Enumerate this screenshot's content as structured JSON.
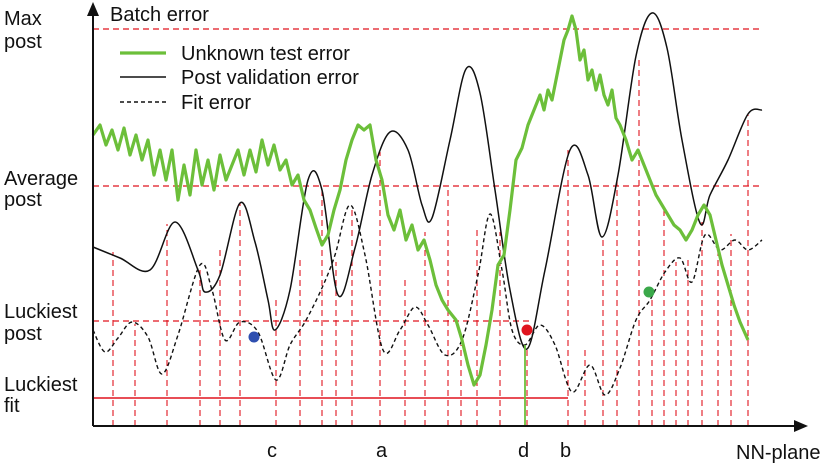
{
  "chart_data": {
    "type": "line",
    "title": "",
    "ylabel": "Batch error",
    "xlabel": "NN-plane",
    "y_reference_lines": [
      {
        "id": "max",
        "lines": [
          "Max",
          "post"
        ],
        "color": "#e0141e",
        "style": "dashed"
      },
      {
        "id": "average",
        "lines": [
          "Average",
          "post"
        ],
        "color": "#e0141e",
        "style": "dashed"
      },
      {
        "id": "luckiest_post",
        "lines": [
          "Luckiest",
          "post"
        ],
        "color": "#e0141e",
        "style": "dashed"
      },
      {
        "id": "luckiest_fit",
        "lines": [
          "Luckiest",
          "fit"
        ],
        "color": "#e0141e",
        "style": "solid"
      }
    ],
    "x_markers": [
      "c",
      "a",
      "d",
      "b"
    ],
    "legend": {
      "placement": "top-left",
      "entries": [
        {
          "label": "Unknown test error",
          "color": "#6cbf3a",
          "style": "solid"
        },
        {
          "label": "Post validation error",
          "color": "#111111",
          "style": "solid"
        },
        {
          "label": "Fit error",
          "color": "#111111",
          "style": "dashed"
        }
      ]
    },
    "series_colors": {
      "test": "#6cbf3a",
      "post": "#111111",
      "fit": "#111111",
      "guide": "#e0141e"
    },
    "dots": [
      {
        "marker": "c",
        "color": "#2e4fb0"
      },
      {
        "marker": "d",
        "color": "#e0141e"
      },
      {
        "marker": "b",
        "color": "#3aa84a"
      }
    ]
  }
}
